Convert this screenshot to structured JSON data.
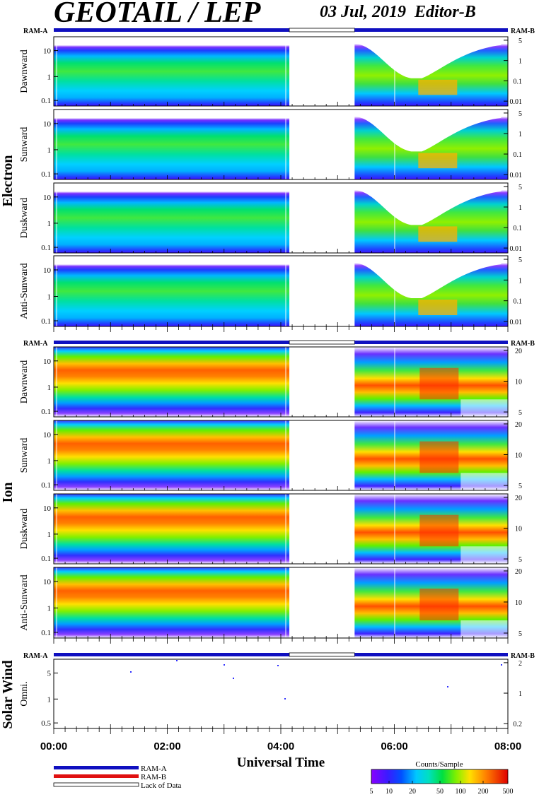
{
  "header": {
    "title": "GEOTAIL / LEP",
    "date": "03 Jul, 2019",
    "editor": "Editor-B"
  },
  "legend": {
    "ram_a": "RAM-A",
    "ram_b": "RAM-B",
    "lack": "Lack of Data",
    "colorbar_title": "Counts/Sample",
    "colorbar_ticks": [
      "5",
      "10",
      "20",
      "50",
      "100",
      "200",
      "500"
    ]
  },
  "colors": {
    "ram_a": "#1010c0",
    "ram_b": "#e01010",
    "colormap": [
      "#8800ff",
      "#3a1bff",
      "#0050ff",
      "#00a8ff",
      "#00e0e0",
      "#00e080",
      "#40f000",
      "#c0f000",
      "#ffe000",
      "#ff8000",
      "#ff2000",
      "#e00000"
    ]
  },
  "chart_data": {
    "type": "heatmap",
    "xlabel": "Universal Time",
    "x_ticks": [
      "00:00",
      "02:00",
      "04:00",
      "06:00",
      "08:00"
    ],
    "x_range_hours": [
      0,
      8
    ],
    "data_gap_hours": [
      4.15,
      5.3
    ],
    "groups": [
      {
        "name": "Electron",
        "ram_a_label": "RAM-A",
        "ram_b_label": "RAM-B",
        "left_ticks": [
          "10",
          "1",
          "0.1"
        ],
        "right_ticks": [
          "5",
          "1",
          "0.1",
          "0.01"
        ],
        "panels": [
          "Dawnward",
          "Sunward",
          "Duskward",
          "Anti-Sunward"
        ]
      },
      {
        "name": "Ion",
        "ram_a_label": "RAM-A",
        "ram_b_label": "RAM-B",
        "left_ticks": [
          "10",
          "1",
          "0.1"
        ],
        "right_ticks": [
          "20",
          "10",
          "5"
        ],
        "panels": [
          "Dawnward",
          "Sunward",
          "Duskward",
          "Anti-Sunward"
        ]
      },
      {
        "name": "Solar Wind",
        "ram_a_label": "RAM-A",
        "ram_b_label": "RAM-B",
        "left_ticks": [
          "5",
          "1",
          "0.5"
        ],
        "right_ticks": [
          "2",
          "1",
          "0.2"
        ],
        "panels": [
          "Omni."
        ]
      }
    ]
  }
}
